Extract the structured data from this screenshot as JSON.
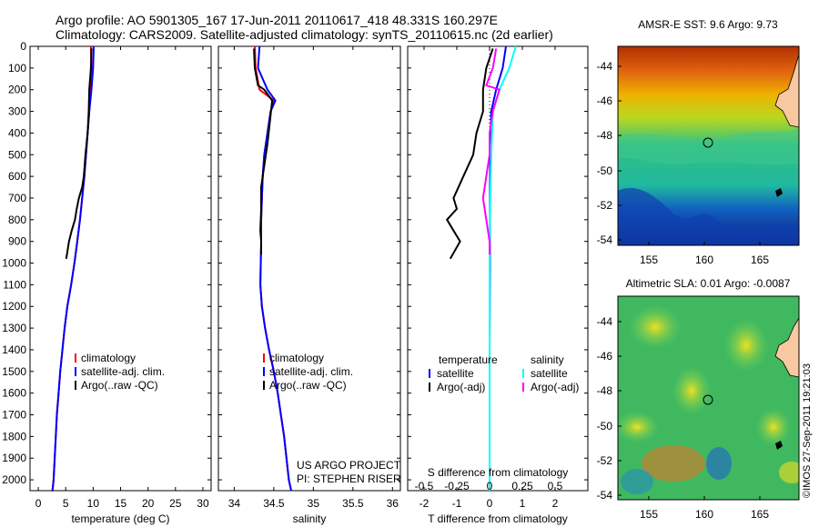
{
  "header": {
    "line1": "Argo profile: AO 5901305_167 17-Jun-2011 20110617_418 48.331S 160.297E",
    "line2": "Climatology: CARS2009. Satellite-adjusted climatology: synTS_20110615.nc (2d earlier)"
  },
  "colors": {
    "climatology": "#ff0000",
    "satellite": "#0000ff",
    "argo": "#000000",
    "sal_satellite": "#00ffff",
    "sal_argo": "#ff00ff"
  },
  "chart_data": [
    {
      "type": "line",
      "xlabel": "temperature (deg C)",
      "ylim": [
        2050,
        0
      ],
      "xlim": [
        -1.5,
        31.5
      ],
      "yticks": [
        0,
        100,
        200,
        300,
        400,
        500,
        600,
        700,
        800,
        900,
        1000,
        1100,
        1200,
        1300,
        1400,
        1500,
        1600,
        1700,
        1800,
        1900,
        2000
      ],
      "xticks": [
        0,
        5,
        10,
        15,
        20,
        25,
        30
      ],
      "legend": [
        "climatology",
        "satellite-adj. clim.",
        "Argo(..raw -QC)"
      ],
      "series": [
        {
          "name": "climatology",
          "x": [
            9.6,
            9.7,
            9.5,
            9.3,
            9.0,
            8.7,
            8.4,
            8.0,
            7.6,
            7.1,
            6.6,
            6.0,
            5.3,
            4.8,
            4.4,
            4.0,
            3.7,
            3.4,
            3.2,
            3.0,
            2.8,
            2.6,
            2.4
          ],
          "y": [
            0,
            100,
            200,
            300,
            400,
            500,
            600,
            700,
            800,
            900,
            1000,
            1100,
            1200,
            1300,
            1400,
            1500,
            1600,
            1700,
            1800,
            1900,
            2000,
            2050,
            2050
          ]
        },
        {
          "name": "satellite-adj. clim.",
          "x": [
            10.1,
            10.0,
            9.7,
            9.3,
            9.0,
            8.7,
            8.4,
            8.0,
            7.6,
            7.1,
            6.6,
            6.0,
            5.3,
            4.8,
            4.4,
            4.0,
            3.7,
            3.4,
            3.2,
            3.0,
            2.8,
            2.6
          ],
          "y": [
            0,
            100,
            200,
            300,
            400,
            500,
            600,
            700,
            800,
            900,
            1000,
            1100,
            1200,
            1300,
            1400,
            1500,
            1600,
            1700,
            1800,
            1900,
            2000,
            2050
          ]
        },
        {
          "name": "Argo(..raw -QC)",
          "x": [
            9.7,
            9.6,
            9.3,
            9.2,
            9.0,
            8.6,
            8.3,
            8.0,
            7.4,
            7.0,
            6.7,
            6.1,
            5.6,
            5.1
          ],
          "y": [
            10,
            100,
            200,
            300,
            400,
            500,
            600,
            650,
            700,
            750,
            800,
            850,
            900,
            980
          ]
        }
      ]
    },
    {
      "type": "line",
      "xlabel": "salinity",
      "xlim": [
        33.8,
        36.1
      ],
      "xticks": [
        34,
        34.5,
        35,
        35.5,
        36
      ],
      "legend": [
        "climatology",
        "satellite-adj. clim.",
        "Argo(..raw -QC)"
      ],
      "series": [
        {
          "name": "climatology",
          "x": [
            34.26,
            34.27,
            34.32,
            34.5,
            34.46,
            34.42,
            34.38,
            34.36,
            34.35,
            34.34,
            34.34,
            34.33,
            34.35,
            34.39,
            34.44,
            34.5,
            34.55,
            34.59,
            34.63,
            34.66,
            34.69,
            34.72
          ],
          "y": [
            0,
            100,
            200,
            250,
            300,
            400,
            500,
            600,
            700,
            800,
            900,
            1100,
            1200,
            1300,
            1400,
            1500,
            1600,
            1700,
            1800,
            1900,
            2000,
            2050
          ]
        },
        {
          "name": "satellite-adj. clim.",
          "x": [
            34.32,
            34.3,
            34.42,
            34.52,
            34.46,
            34.42,
            34.38,
            34.36,
            34.35,
            34.34,
            34.34,
            34.33,
            34.35,
            34.39,
            34.44,
            34.5,
            34.55,
            34.59,
            34.63,
            34.66,
            34.69,
            34.72
          ],
          "y": [
            0,
            100,
            200,
            250,
            300,
            400,
            500,
            600,
            700,
            800,
            900,
            1100,
            1200,
            1300,
            1400,
            1500,
            1600,
            1700,
            1800,
            1900,
            2000,
            2050
          ]
        },
        {
          "name": "Argo(..raw -QC)",
          "x": [
            34.25,
            34.26,
            34.3,
            34.38,
            34.48,
            34.45,
            34.42,
            34.38,
            34.34,
            34.34,
            34.33,
            34.34,
            34.34
          ],
          "y": [
            10,
            100,
            180,
            200,
            250,
            350,
            450,
            550,
            650,
            750,
            850,
            900,
            960
          ]
        }
      ]
    },
    {
      "type": "line",
      "xlabel": "T difference from climatology",
      "xlabel2": "S difference from climatology",
      "xlim": [
        -2.5,
        3.0
      ],
      "xticks": [
        -2,
        -1,
        0,
        1,
        2
      ],
      "xticks_top": [
        -0.5,
        -0.25,
        0,
        0.25,
        0.5
      ],
      "legend_temperature": {
        "title": "temperature",
        "items": [
          "satellite",
          "Argo(-adj)"
        ]
      },
      "legend_salinity": {
        "title": "salinity",
        "items": [
          "satellite",
          "Argo(-adj)"
        ]
      },
      "series": [
        {
          "name": "temperature satellite",
          "x": [
            0.5,
            0.4,
            0.2,
            0.05,
            0.02,
            0.01,
            0.01,
            0,
            0,
            0
          ],
          "y": [
            0,
            100,
            200,
            300,
            500,
            700,
            1000,
            1400,
            1800,
            2050
          ]
        },
        {
          "name": "temperature Argo(-adj)",
          "x": [
            0.1,
            -0.1,
            -0.2,
            -0.2,
            -0.4,
            -0.5,
            -0.8,
            -1.1,
            -1.0,
            -1.3,
            -1.1,
            -0.9,
            -1.2
          ],
          "y": [
            10,
            100,
            200,
            300,
            400,
            500,
            600,
            700,
            750,
            800,
            850,
            900,
            980
          ]
        },
        {
          "name": "salinity satellite",
          "x": [
            0.8,
            0.6,
            0.3,
            0.1,
            0.05,
            0.02,
            0,
            0,
            0,
            0
          ],
          "y": [
            0,
            100,
            200,
            300,
            500,
            700,
            1000,
            1400,
            1800,
            2050
          ]
        },
        {
          "name": "salinity Argo(-adj)",
          "x": [
            0.2,
            0.1,
            -0.1,
            0.3,
            0.1,
            0,
            0,
            -0.1,
            -0.2,
            -0.1,
            0,
            0
          ],
          "y": [
            10,
            100,
            180,
            200,
            300,
            400,
            500,
            600,
            700,
            800,
            900,
            960
          ]
        }
      ]
    }
  ],
  "annotation": {
    "line1": "US ARGO PROJECT",
    "line2": "PI: STEPHEN RISER"
  },
  "maps": [
    {
      "title": "AMSR-E SST: 9.6 Argo: 9.73",
      "yticks": [
        "-44",
        "-46",
        "-48",
        "-50",
        "-52",
        "-54"
      ],
      "xticks": [
        "155",
        "160",
        "165"
      ]
    },
    {
      "title": "Altimetric SLA: 0.01 Argo: -0.0087",
      "yticks": [
        "-44",
        "-46",
        "-48",
        "-50",
        "-52",
        "-54"
      ],
      "xticks": [
        "155",
        "160",
        "165"
      ]
    }
  ],
  "credit": "©IMOS 27-Sep-2011 19:21:03"
}
